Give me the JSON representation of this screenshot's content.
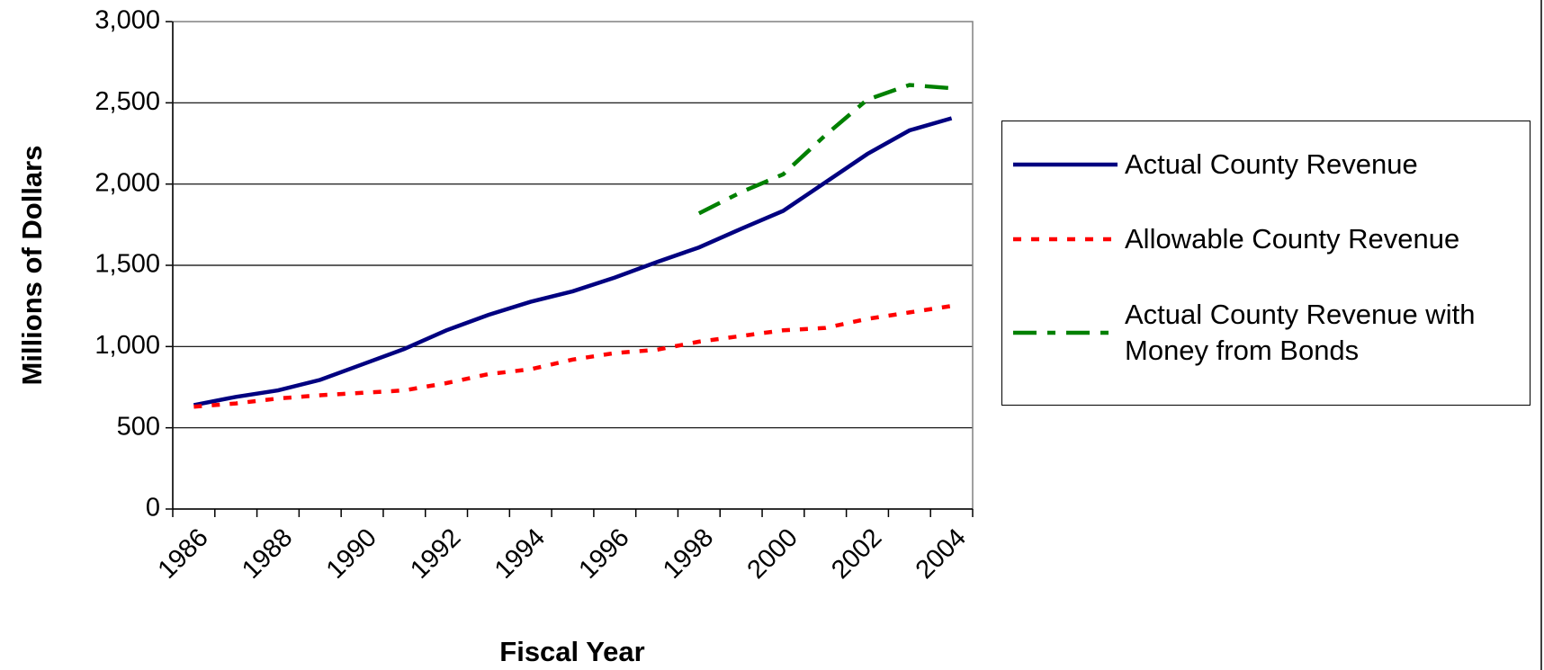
{
  "chart_data": {
    "type": "line",
    "x_label": "Fiscal Year",
    "y_label": "Millions of Dollars",
    "categories": [
      "1986",
      null,
      "1988",
      null,
      "1990",
      null,
      "1992",
      null,
      "1994",
      null,
      "1996",
      null,
      "1998",
      null,
      "2000",
      null,
      "2002",
      null,
      "2004"
    ],
    "series": [
      {
        "name": "Actual County Revenue",
        "color": "#000080",
        "style": "solid",
        "values": [
          640,
          690,
          730,
          795,
          890,
          985,
          1100,
          1195,
          1275,
          1340,
          1425,
          1520,
          1610,
          1725,
          1835,
          2010,
          2185,
          2330,
          2405
        ]
      },
      {
        "name": "Allowable County Revenue",
        "color": "#ff0000",
        "style": "dotted",
        "values": [
          630,
          650,
          680,
          700,
          715,
          730,
          775,
          830,
          860,
          920,
          960,
          980,
          1030,
          1065,
          1100,
          1115,
          1170,
          1210,
          1250
        ]
      },
      {
        "name": "Actual County Revenue with Money from Bonds",
        "color": "#008000",
        "style": "dash-dot",
        "values": [
          null,
          null,
          null,
          null,
          null,
          null,
          null,
          null,
          null,
          null,
          null,
          null,
          1820,
          1950,
          2060,
          2300,
          2520,
          2610,
          2590
        ]
      }
    ],
    "ylim": [
      0,
      3000
    ],
    "yticks": [
      0,
      500,
      {
        "value": 1000,
        "label": "1,000"
      },
      {
        "value": 1500,
        "label": "1,500"
      },
      {
        "value": 2000,
        "label": "2,000"
      },
      {
        "value": 2500,
        "label": "2,500"
      },
      {
        "value": 3000,
        "label": "3,000"
      }
    ],
    "grid": true
  }
}
